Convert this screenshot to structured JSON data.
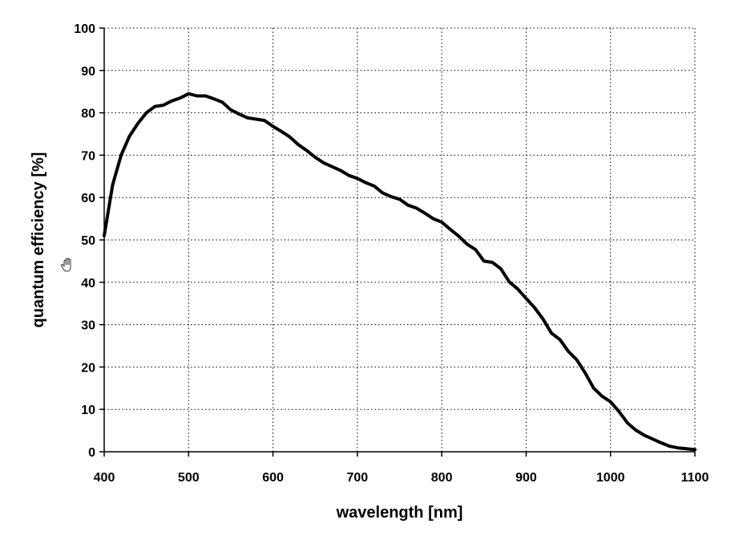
{
  "chart_data": {
    "type": "line",
    "title": "",
    "xlabel": "wavelength [nm]",
    "ylabel": "quantum efficiency [%]",
    "xlim": [
      400,
      1100
    ],
    "ylim": [
      0,
      100
    ],
    "x_ticks": [
      400,
      500,
      600,
      700,
      800,
      900,
      1000,
      1100
    ],
    "y_ticks": [
      0,
      10,
      20,
      30,
      40,
      50,
      60,
      70,
      80,
      90,
      100
    ],
    "grid": true,
    "line_color": "#000000",
    "series": [
      {
        "x": [
          400,
          410,
          420,
          430,
          440,
          450,
          460,
          470,
          480,
          490,
          500,
          510,
          520,
          530,
          540,
          550,
          560,
          570,
          580,
          590,
          600,
          610,
          620,
          630,
          640,
          650,
          660,
          670,
          680,
          690,
          700,
          710,
          720,
          730,
          740,
          750,
          760,
          770,
          780,
          790,
          800,
          810,
          820,
          830,
          840,
          850,
          860,
          870,
          880,
          890,
          900,
          910,
          920,
          930,
          940,
          950,
          960,
          970,
          980,
          990,
          1000,
          1010,
          1020,
          1030,
          1040,
          1050,
          1060,
          1070,
          1080,
          1090,
          1100
        ],
        "values": [
          51,
          63,
          70,
          74.5,
          77.5,
          80,
          81.5,
          81.8,
          82.8,
          83.5,
          84.5,
          84,
          84,
          83.3,
          82.5,
          80.7,
          79.7,
          78.8,
          78.5,
          78.2,
          76.8,
          75.6,
          74.3,
          72.5,
          71.1,
          69.5,
          68.2,
          67.3,
          66.4,
          65.2,
          64.5,
          63.5,
          62.7,
          61.1,
          60.2,
          59.6,
          58.2,
          57.5,
          56.3,
          55,
          54.2,
          52.5,
          50.9,
          49,
          47.7,
          45,
          44.7,
          43.2,
          40.1,
          38.4,
          36.2,
          34,
          31.3,
          28,
          26.5,
          23.7,
          21.7,
          18.6,
          15,
          13.1,
          11.8,
          9.5,
          6.8,
          5.1,
          3.9,
          3,
          2.1,
          1.3,
          0.9,
          0.7,
          0.5
        ]
      }
    ]
  },
  "cursor": {
    "icon": "hand-cursor-icon"
  }
}
